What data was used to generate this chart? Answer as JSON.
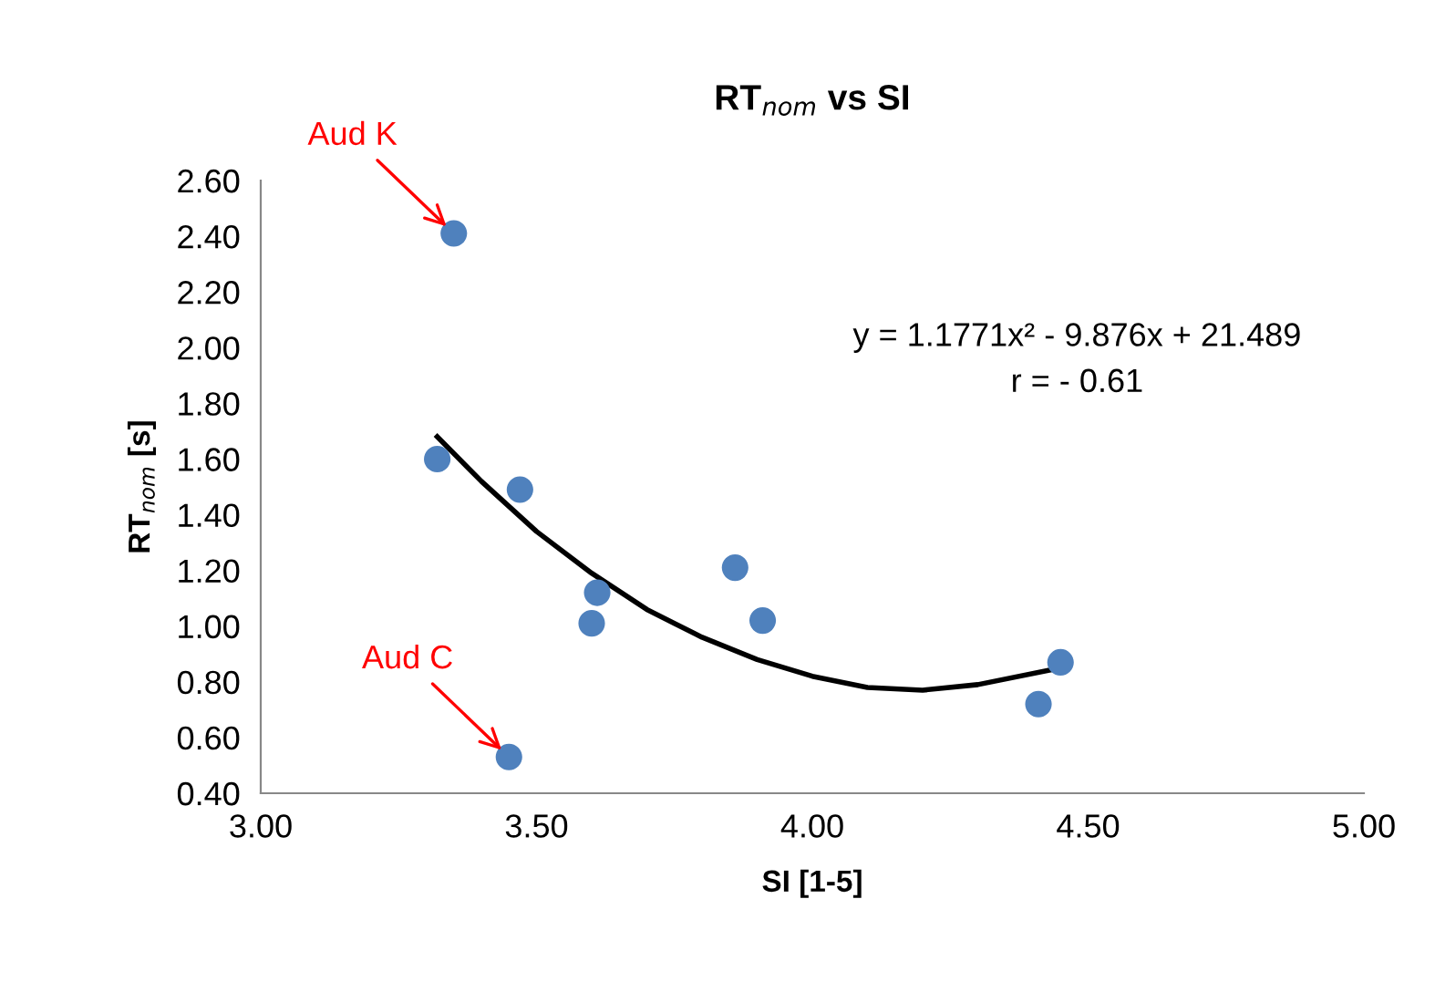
{
  "chart_data": {
    "type": "scatter",
    "title": "RT$_{nom}$ vs SI",
    "xlabel": "SI [1-5]",
    "ylabel": "RT$_{nom}$ [s]",
    "xlim": [
      3.0,
      5.0
    ],
    "xticks": [
      {
        "value": 3.0,
        "label": "3.00"
      },
      {
        "value": 3.5,
        "label": "3.50"
      },
      {
        "value": 4.0,
        "label": "4.00"
      },
      {
        "value": 4.5,
        "label": "4.50"
      },
      {
        "value": 5.0,
        "label": "5.00"
      }
    ],
    "ylim": [
      0.4,
      2.6
    ],
    "yticks": [
      {
        "value": 0.4,
        "label": "0.40"
      },
      {
        "value": 0.6,
        "label": "0.60"
      },
      {
        "value": 0.8,
        "label": "0.80"
      },
      {
        "value": 1.0,
        "label": "1.00"
      },
      {
        "value": 1.2,
        "label": "1.20"
      },
      {
        "value": 1.4,
        "label": "1.40"
      },
      {
        "value": 1.6,
        "label": "1.60"
      },
      {
        "value": 1.8,
        "label": "1.80"
      },
      {
        "value": 2.0,
        "label": "2.00"
      },
      {
        "value": 2.2,
        "label": "2.20"
      },
      {
        "value": 2.4,
        "label": "2.40"
      },
      {
        "value": 2.6,
        "label": "2.60"
      }
    ],
    "grid": false,
    "legend": false,
    "series": [
      {
        "marker": "circle",
        "color": "#4f81bd",
        "x": [
          3.35,
          3.32,
          3.47,
          3.61,
          3.6,
          3.86,
          3.91,
          3.45,
          4.41,
          4.45
        ],
        "values": [
          2.41,
          1.6,
          1.49,
          1.12,
          1.01,
          1.21,
          1.02,
          0.53,
          0.72,
          0.87
        ]
      },
      {
        "type": "line",
        "marker": "none",
        "color": "#000000",
        "x": [
          3.32,
          3.4,
          3.5,
          3.6,
          3.7,
          3.75,
          3.8,
          3.9,
          4.0,
          4.1,
          4.2,
          4.3,
          4.45
        ],
        "values": [
          1.68,
          1.52,
          1.34,
          1.19,
          1.06,
          1.01,
          0.96,
          0.88,
          0.82,
          0.78,
          0.77,
          0.79,
          0.85
        ]
      }
    ],
    "annotations": [
      {
        "text": "Aud K",
        "x": 3.35,
        "y": 2.41
      },
      {
        "text": "Aud C",
        "x": 3.45,
        "y": 0.53
      },
      "y = 1.1771x² - 9.876x + 21.489",
      "r = - 0.61"
    ]
  }
}
